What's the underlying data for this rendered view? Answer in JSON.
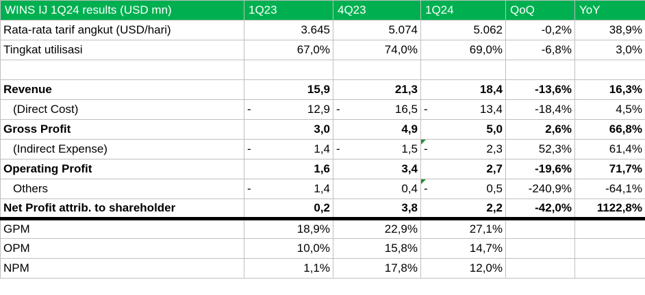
{
  "header": [
    "WINS IJ 1Q24 results (USD mn)",
    "1Q23",
    "4Q23",
    "1Q24",
    "QoQ",
    "YoY"
  ],
  "rows": {
    "tarif": {
      "label": "Rata-rata tarif angkut (USD/hari)",
      "q1_23": "3.645",
      "q4_23": "5.074",
      "q1_24": "5.062",
      "qoq": "-0,2%",
      "yoy": "38,9%"
    },
    "util": {
      "label": "Tingkat utilisasi",
      "q1_23": "67,0%",
      "q4_23": "74,0%",
      "q1_24": "69,0%",
      "qoq": "-6,8%",
      "yoy": "3,0%"
    },
    "revenue": {
      "label": "Revenue",
      "q1_23": "15,9",
      "q4_23": "21,3",
      "q1_24": "18,4",
      "qoq": "-13,6%",
      "yoy": "16,3%"
    },
    "direct": {
      "label": "(Direct Cost)",
      "q1_23": "12,9",
      "q4_23": "16,5",
      "q1_24": "13,4",
      "qoq": "-18,4%",
      "yoy": "4,5%"
    },
    "gross": {
      "label": "Gross Profit",
      "q1_23": "3,0",
      "q4_23": "4,9",
      "q1_24": "5,0",
      "qoq": "2,6%",
      "yoy": "66,8%"
    },
    "indirect": {
      "label": "(Indirect Expense)",
      "q1_23": "1,4",
      "q4_23": "1,5",
      "q1_24": "2,3",
      "qoq": "52,3%",
      "yoy": "61,4%"
    },
    "operating": {
      "label": "Operating Profit",
      "q1_23": "1,6",
      "q4_23": "3,4",
      "q1_24": "2,7",
      "qoq": "-19,6%",
      "yoy": "71,7%"
    },
    "others": {
      "label": "Others",
      "q1_23": "1,4",
      "q4_23": "0,4",
      "q1_24": "0,5",
      "qoq": "-240,9%",
      "yoy": "-64,1%"
    },
    "net": {
      "label": "Net Profit attrib. to shareholder",
      "q1_23": "0,2",
      "q4_23": "3,8",
      "q1_24": "2,2",
      "qoq": "-42,0%",
      "yoy": "1122,8%"
    },
    "gpm": {
      "label": "GPM",
      "q1_23": "18,9%",
      "q4_23": "22,9%",
      "q1_24": "27,1%"
    },
    "opm": {
      "label": "OPM",
      "q1_23": "10,0%",
      "q4_23": "15,8%",
      "q1_24": "14,7%"
    },
    "npm": {
      "label": "NPM",
      "q1_23": "1,1%",
      "q4_23": "17,8%",
      "q1_24": "12,0%"
    }
  },
  "dash_symbol": "-",
  "colors": {
    "header_bg": "#00b050",
    "header_text": "#ffffff",
    "grid": "#bfbfbf",
    "comment_marker": "#1f8f3a"
  }
}
